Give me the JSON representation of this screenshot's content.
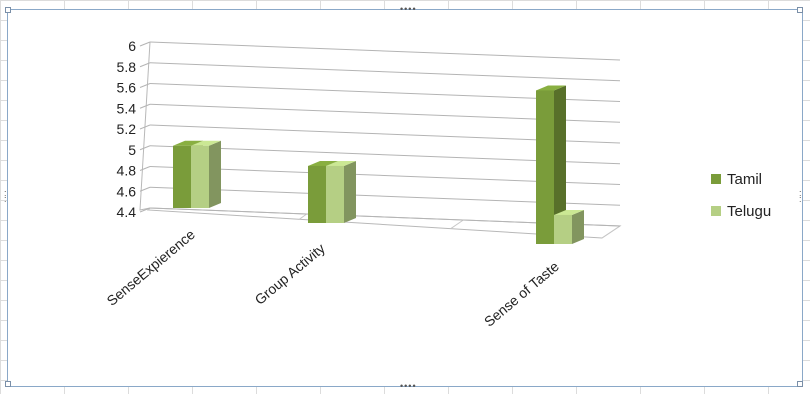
{
  "chart_data": {
    "type": "bar",
    "categories": [
      "SenseExpierence",
      "Group Activity",
      "Sense of Taste"
    ],
    "series": [
      {
        "name": "Tamil",
        "values": [
          5.0,
          4.95,
          5.88
        ],
        "color": "#7a9c3a"
      },
      {
        "name": "Telugu",
        "values": [
          5.0,
          4.95,
          4.68
        ],
        "color": "#b5cf84"
      }
    ],
    "yticks": [
      "6",
      "5.8",
      "5.6",
      "5.4",
      "5.2",
      "5",
      "4.8",
      "4.6",
      "4.4"
    ],
    "ylim": [
      4.4,
      6.0
    ],
    "grid": true,
    "legend": "right",
    "style": "3d-clustered-column"
  }
}
